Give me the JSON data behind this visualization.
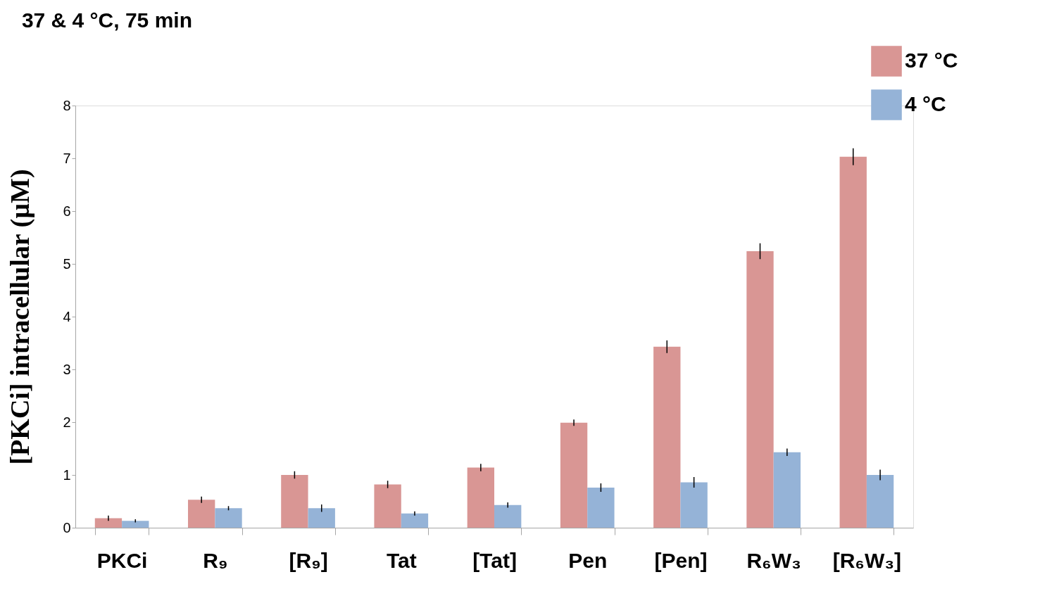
{
  "chart_data": {
    "type": "bar",
    "title": "37 & 4 °C, 75 min",
    "ylabel": "[PKCi] intracellular (µM)",
    "categories": [
      "PKCi",
      "R₉",
      "[R₉]",
      "Tat",
      "[Tat]",
      "Pen",
      "[Pen]",
      "R₆W₃",
      "[R₆W₃]"
    ],
    "series": [
      {
        "name": "37 °C",
        "color": "#d99694",
        "values": [
          0.18,
          0.53,
          1.0,
          0.82,
          1.14,
          1.99,
          3.43,
          5.24,
          7.03
        ],
        "errors": [
          0.05,
          0.06,
          0.07,
          0.07,
          0.07,
          0.06,
          0.12,
          0.15,
          0.16
        ]
      },
      {
        "name": "4 °C",
        "color": "#95b3d7",
        "values": [
          0.13,
          0.37,
          0.37,
          0.27,
          0.43,
          0.76,
          0.86,
          1.43,
          1.0
        ],
        "errors": [
          0.03,
          0.04,
          0.07,
          0.04,
          0.05,
          0.08,
          0.1,
          0.07,
          0.1
        ]
      }
    ],
    "ylim": [
      0,
      8
    ],
    "yticks": [
      0,
      1,
      2,
      3,
      4,
      5,
      6,
      7,
      8
    ],
    "grid": false,
    "legend": "top right"
  }
}
